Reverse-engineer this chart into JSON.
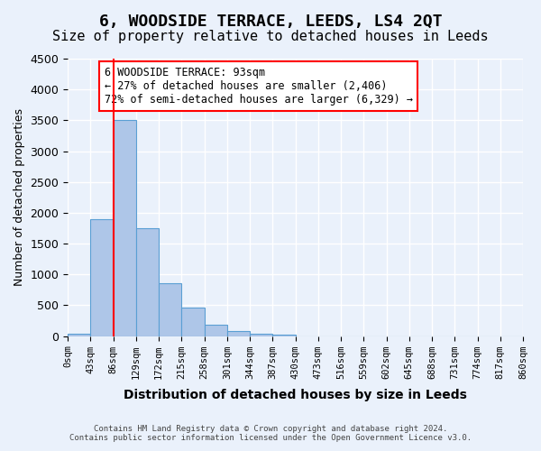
{
  "title": "6, WOODSIDE TERRACE, LEEDS, LS4 2QT",
  "subtitle": "Size of property relative to detached houses in Leeds",
  "xlabel": "Distribution of detached houses by size in Leeds",
  "ylabel": "Number of detached properties",
  "bar_values": [
    40,
    1900,
    3500,
    1750,
    860,
    460,
    180,
    80,
    40,
    20,
    0,
    0,
    0,
    0,
    0,
    0,
    0,
    0,
    0,
    0
  ],
  "bin_edges": [
    0,
    43,
    86,
    129,
    172,
    215,
    258,
    301,
    344,
    387,
    430,
    473,
    516,
    559,
    602,
    645,
    688,
    731,
    774,
    817,
    860
  ],
  "bin_labels": [
    "0sqm",
    "43sqm",
    "86sqm",
    "129sqm",
    "172sqm",
    "215sqm",
    "258sqm",
    "301sqm",
    "344sqm",
    "387sqm",
    "430sqm",
    "473sqm",
    "516sqm",
    "559sqm",
    "602sqm",
    "645sqm",
    "688sqm",
    "731sqm",
    "774sqm",
    "817sqm",
    "860sqm"
  ],
  "bar_color": "#aec6e8",
  "bar_edge_color": "#5a9fd4",
  "red_line_x": 2,
  "ylim": [
    0,
    4500
  ],
  "yticks": [
    0,
    500,
    1000,
    1500,
    2000,
    2500,
    3000,
    3500,
    4000,
    4500
  ],
  "annotation_title": "6 WOODSIDE TERRACE: 93sqm",
  "annotation_line1": "← 27% of detached houses are smaller (2,406)",
  "annotation_line2": "72% of semi-detached houses are larger (6,329) →",
  "footer_line1": "Contains HM Land Registry data © Crown copyright and database right 2024.",
  "footer_line2": "Contains public sector information licensed under the Open Government Licence v3.0.",
  "bg_color": "#eaf1fb",
  "grid_color": "#ffffff",
  "title_fontsize": 13,
  "subtitle_fontsize": 11
}
